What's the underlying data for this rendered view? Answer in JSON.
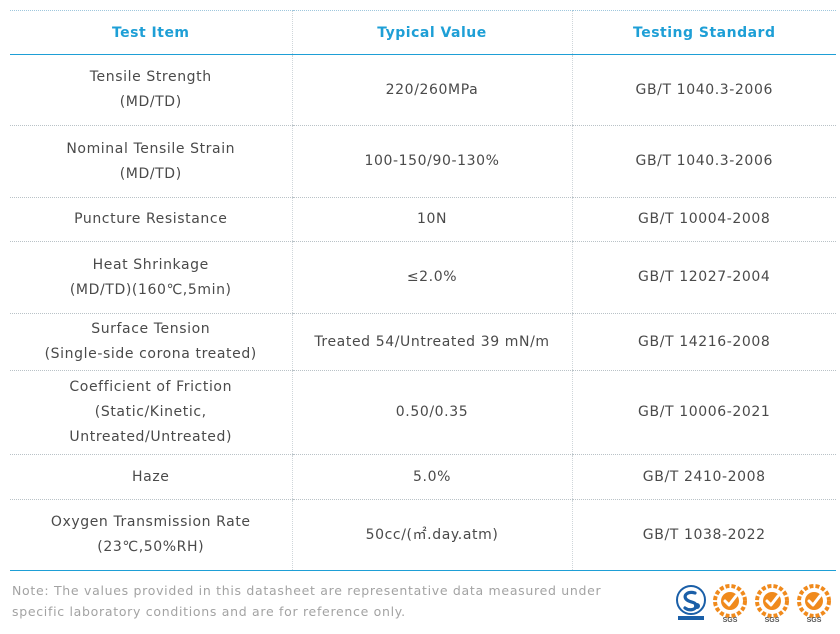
{
  "table": {
    "headers": [
      "Test Item",
      "Typical Value",
      "Testing Standard"
    ],
    "rows": [
      {
        "item": [
          "Tensile Strength",
          "(MD/TD)"
        ],
        "value": [
          "220/260MPa"
        ],
        "standard": "GB/T 1040.3-2006"
      },
      {
        "item": [
          "Nominal Tensile Strain",
          "(MD/TD)"
        ],
        "value": [
          "100-150/90-130%"
        ],
        "standard": "GB/T 1040.3-2006"
      },
      {
        "item": [
          "Puncture Resistance"
        ],
        "value": [
          "10N"
        ],
        "standard": "GB/T 10004-2008"
      },
      {
        "item": [
          "Heat Shrinkage",
          "(MD/TD)(160℃,5min)"
        ],
        "value": [
          "≤2.0%"
        ],
        "standard": "GB/T 12027-2004"
      },
      {
        "item": [
          "Surface Tension",
          "(Single-side corona treated)"
        ],
        "value": [
          "Treated 54/Untreated 39 mN/m"
        ],
        "standard": "GB/T 14216-2008"
      },
      {
        "item": [
          "Coefficient of Friction",
          "(Static/Kinetic,",
          "Untreated/Untreated)"
        ],
        "value": [
          "0.50/0.35"
        ],
        "standard": "GB/T 10006-2021"
      },
      {
        "item": [
          "Haze"
        ],
        "value": [
          "5.0%"
        ],
        "standard": "GB/T 2410-2008"
      },
      {
        "item": [
          "Oxygen Transmission Rate",
          "(23℃,50%RH)"
        ],
        "value": [
          "50cc/(㎡.day.atm)"
        ],
        "standard": "GB/T 1038-2022"
      }
    ]
  },
  "note": {
    "lines": [
      "Note: The values provided in this datasheet are representative data measured under",
      "specific laboratory conditions and are for reference only."
    ]
  },
  "certifications": {
    "badges": [
      {
        "icon": "quality-certification-icon",
        "color": "#1a5fa8"
      },
      {
        "icon": "sgs-certification-icon",
        "label": "SGS",
        "color": "#f08a1c"
      },
      {
        "icon": "sgs-certification-icon",
        "label": "SGS",
        "color": "#f08a1c"
      },
      {
        "icon": "sgs-certification-icon",
        "label": "SGS",
        "color": "#f08a1c"
      }
    ]
  }
}
